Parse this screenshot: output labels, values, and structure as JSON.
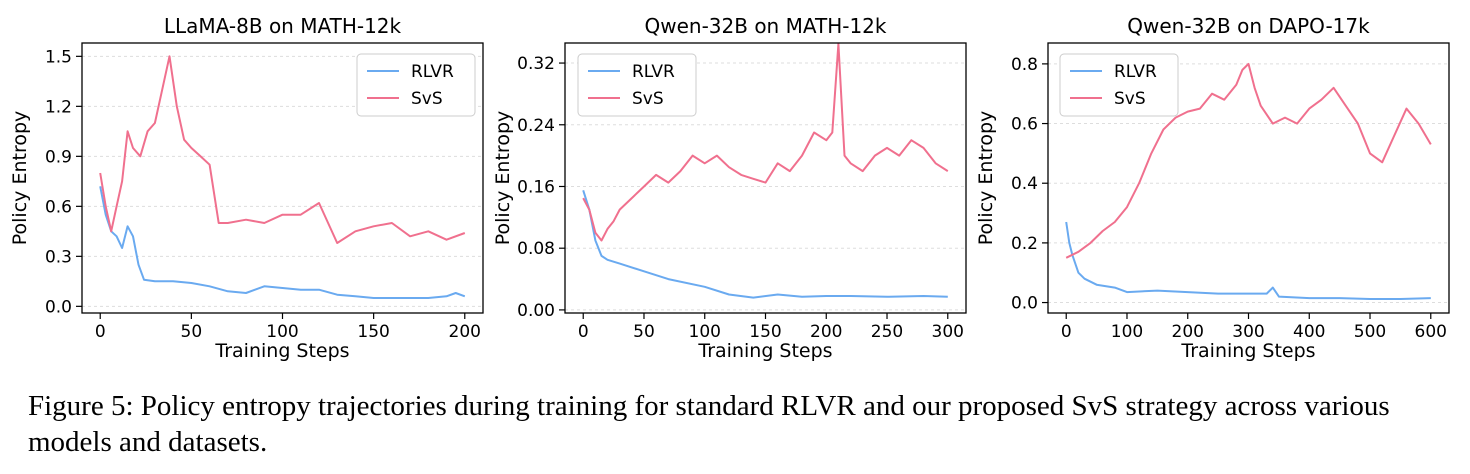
{
  "colors": {
    "rlvr": "#6aaaf0",
    "svs": "#f0708e",
    "grid": "#dddddd"
  },
  "caption": {
    "label": "Figure 5:",
    "text": "Policy entropy trajectories during training for standard RLVR and our proposed SvS strategy across various models and datasets."
  },
  "chart_data": [
    {
      "type": "line",
      "title": "LLaMA-8B on MATH-12k",
      "xlabel": "Training Steps",
      "ylabel": "Policy Entropy",
      "xlim": [
        -10,
        210
      ],
      "ylim": [
        -0.04,
        1.58
      ],
      "xticks": [
        "0",
        "50",
        "100",
        "150",
        "200"
      ],
      "yticks": [
        "0.0",
        "0.3",
        "0.6",
        "0.9",
        "1.2",
        "1.5"
      ],
      "legend": "top-right",
      "series": [
        {
          "name": "RLVR",
          "x": [
            0,
            3,
            6,
            9,
            12,
            15,
            18,
            21,
            24,
            30,
            40,
            50,
            60,
            70,
            80,
            90,
            100,
            110,
            120,
            130,
            140,
            150,
            160,
            170,
            180,
            190,
            195,
            200
          ],
          "y": [
            0.72,
            0.55,
            0.45,
            0.42,
            0.35,
            0.48,
            0.42,
            0.25,
            0.16,
            0.15,
            0.15,
            0.14,
            0.12,
            0.09,
            0.08,
            0.12,
            0.11,
            0.1,
            0.1,
            0.07,
            0.06,
            0.05,
            0.05,
            0.05,
            0.05,
            0.06,
            0.08,
            0.06
          ]
        },
        {
          "name": "SvS",
          "x": [
            0,
            3,
            6,
            9,
            12,
            15,
            18,
            22,
            26,
            30,
            34,
            38,
            42,
            46,
            50,
            55,
            60,
            65,
            70,
            80,
            90,
            100,
            110,
            120,
            130,
            140,
            150,
            160,
            170,
            180,
            190,
            200
          ],
          "y": [
            0.8,
            0.6,
            0.45,
            0.6,
            0.75,
            1.05,
            0.95,
            0.9,
            1.05,
            1.1,
            1.3,
            1.5,
            1.2,
            1.0,
            0.95,
            0.9,
            0.85,
            0.5,
            0.5,
            0.52,
            0.5,
            0.55,
            0.55,
            0.62,
            0.38,
            0.45,
            0.48,
            0.5,
            0.42,
            0.45,
            0.4,
            0.44
          ]
        }
      ]
    },
    {
      "type": "line",
      "title": "Qwen-32B on MATH-12k",
      "xlabel": "Training Steps",
      "ylabel": "Policy Entropy",
      "xlim": [
        -15,
        315
      ],
      "ylim": [
        -0.004,
        0.346
      ],
      "xticks": [
        "0",
        "50",
        "100",
        "150",
        "200",
        "250",
        "300"
      ],
      "yticks": [
        "0.00",
        "0.08",
        "0.16",
        "0.24",
        "0.32"
      ],
      "legend": "top-left",
      "series": [
        {
          "name": "RLVR",
          "x": [
            0,
            5,
            10,
            15,
            20,
            30,
            50,
            70,
            100,
            120,
            140,
            160,
            180,
            200,
            220,
            250,
            280,
            300
          ],
          "y": [
            0.155,
            0.13,
            0.09,
            0.07,
            0.065,
            0.06,
            0.05,
            0.04,
            0.03,
            0.02,
            0.016,
            0.02,
            0.017,
            0.018,
            0.018,
            0.017,
            0.018,
            0.017
          ]
        },
        {
          "name": "SvS",
          "x": [
            0,
            5,
            10,
            15,
            20,
            25,
            30,
            40,
            50,
            60,
            70,
            80,
            90,
            100,
            110,
            120,
            130,
            140,
            150,
            160,
            170,
            180,
            190,
            200,
            205,
            210,
            215,
            220,
            230,
            240,
            250,
            260,
            270,
            280,
            290,
            300
          ],
          "y": [
            0.145,
            0.13,
            0.1,
            0.09,
            0.105,
            0.115,
            0.13,
            0.145,
            0.16,
            0.175,
            0.165,
            0.18,
            0.2,
            0.19,
            0.2,
            0.185,
            0.175,
            0.17,
            0.165,
            0.19,
            0.18,
            0.2,
            0.23,
            0.22,
            0.23,
            0.345,
            0.2,
            0.19,
            0.18,
            0.2,
            0.21,
            0.2,
            0.22,
            0.21,
            0.19,
            0.18
          ]
        }
      ]
    },
    {
      "type": "line",
      "title": "Qwen-32B on DAPO-17k",
      "xlabel": "Training Steps",
      "ylabel": "Policy Entropy",
      "xlim": [
        -30,
        630
      ],
      "ylim": [
        -0.035,
        0.87
      ],
      "xticks": [
        "0",
        "100",
        "200",
        "300",
        "400",
        "500",
        "600"
      ],
      "yticks": [
        "0.0",
        "0.2",
        "0.4",
        "0.6",
        "0.8"
      ],
      "legend": "top-left",
      "series": [
        {
          "name": "RLVR",
          "x": [
            0,
            5,
            10,
            20,
            30,
            50,
            80,
            100,
            150,
            200,
            250,
            300,
            330,
            340,
            350,
            400,
            450,
            500,
            550,
            600
          ],
          "y": [
            0.27,
            0.2,
            0.16,
            0.1,
            0.08,
            0.06,
            0.05,
            0.035,
            0.04,
            0.035,
            0.03,
            0.03,
            0.03,
            0.05,
            0.02,
            0.015,
            0.015,
            0.012,
            0.012,
            0.015
          ]
        },
        {
          "name": "SvS",
          "x": [
            0,
            20,
            40,
            60,
            80,
            100,
            120,
            140,
            160,
            180,
            200,
            220,
            240,
            260,
            280,
            290,
            300,
            310,
            320,
            340,
            360,
            380,
            400,
            420,
            440,
            460,
            480,
            500,
            520,
            540,
            560,
            580,
            600
          ],
          "y": [
            0.15,
            0.17,
            0.2,
            0.24,
            0.27,
            0.32,
            0.4,
            0.5,
            0.58,
            0.62,
            0.64,
            0.65,
            0.7,
            0.68,
            0.73,
            0.78,
            0.8,
            0.72,
            0.66,
            0.6,
            0.62,
            0.6,
            0.65,
            0.68,
            0.72,
            0.66,
            0.6,
            0.5,
            0.47,
            0.56,
            0.65,
            0.6,
            0.53
          ]
        }
      ]
    }
  ]
}
